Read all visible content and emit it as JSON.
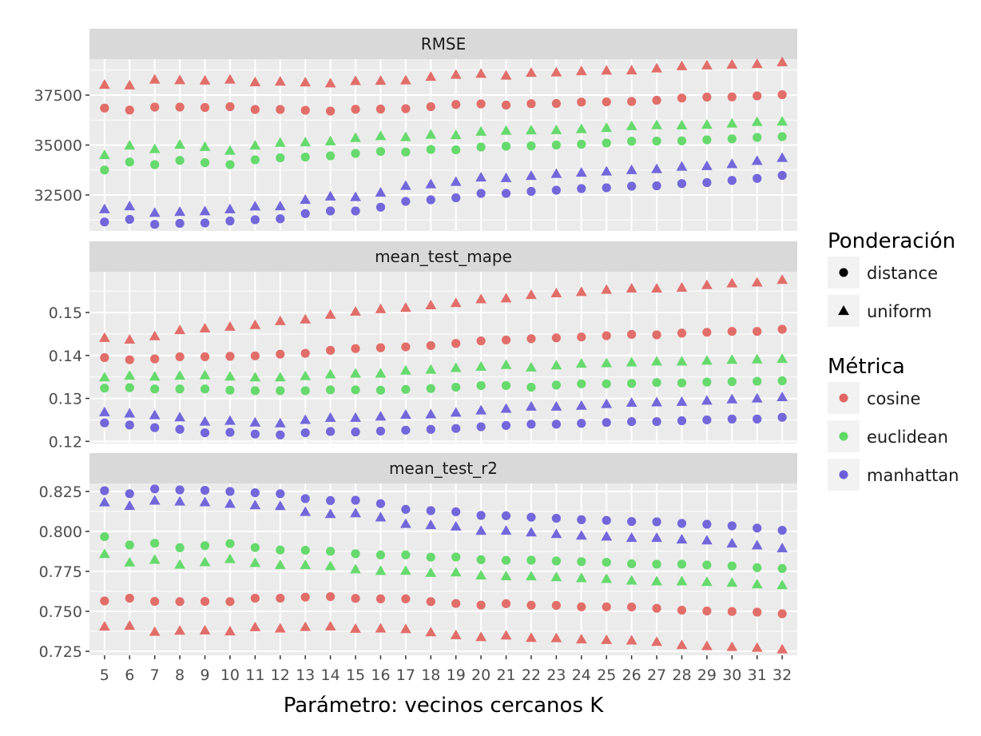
{
  "colors": {
    "cosine": "#e06662",
    "euclidean": "#5fd866",
    "manhattan": "#6b5fd9",
    "panel_bg": "#ebebeb",
    "strip_bg": "#d9d9d9",
    "grid": "#ffffff"
  },
  "chart_data": {
    "type": "scatter",
    "xlabel": "Parámetro: vecinos cercanos K",
    "x": [
      5,
      6,
      7,
      8,
      9,
      10,
      11,
      12,
      13,
      14,
      15,
      16,
      17,
      18,
      19,
      20,
      21,
      22,
      23,
      24,
      25,
      26,
      27,
      28,
      29,
      30,
      31,
      32
    ],
    "legend": {
      "placement": "right",
      "shape_title": "Ponderación",
      "shape_entries": [
        {
          "label": "distance",
          "shape": "circle"
        },
        {
          "label": "uniform",
          "shape": "triangle"
        }
      ],
      "color_title": "Métrica",
      "color_entries": [
        {
          "label": "cosine",
          "color": "#e06662"
        },
        {
          "label": "euclidean",
          "color": "#5fd866"
        },
        {
          "label": "manhattan",
          "color": "#6b5fd9"
        }
      ]
    },
    "panels": [
      {
        "strip": "RMSE",
        "ylim": [
          30700,
          39300
        ],
        "yticks": [
          32500,
          35000,
          37500
        ],
        "ytick_labels": [
          "32500",
          "35000",
          "37500"
        ],
        "minor_yticks": [
          31250,
          33750,
          36250,
          38750
        ],
        "series": [
          {
            "metric": "cosine",
            "weighting": "distance",
            "values": [
              36850,
              36750,
              36900,
              36900,
              36880,
              36920,
              36780,
              36780,
              36740,
              36700,
              36790,
              36800,
              36820,
              36920,
              37030,
              37060,
              37000,
              37070,
              37080,
              37150,
              37160,
              37180,
              37240,
              37350,
              37400,
              37410,
              37460,
              37520
            ]
          },
          {
            "metric": "cosine",
            "weighting": "uniform",
            "values": [
              38020,
              37990,
              38280,
              38250,
              38230,
              38280,
              38150,
              38180,
              38140,
              38090,
              38210,
              38220,
              38240,
              38420,
              38520,
              38570,
              38480,
              38620,
              38640,
              38700,
              38730,
              38740,
              38840,
              38950,
              38990,
              39030,
              39060,
              39150
            ]
          },
          {
            "metric": "euclidean",
            "weighting": "distance",
            "values": [
              33750,
              34150,
              34020,
              34230,
              34120,
              34020,
              34260,
              34360,
              34400,
              34460,
              34580,
              34680,
              34650,
              34780,
              34760,
              34900,
              34940,
              34960,
              35000,
              35040,
              35100,
              35190,
              35200,
              35210,
              35260,
              35310,
              35380,
              35420
            ]
          },
          {
            "metric": "euclidean",
            "weighting": "uniform",
            "values": [
              34500,
              34980,
              34800,
              35020,
              34910,
              34720,
              34980,
              35120,
              35140,
              35190,
              35360,
              35450,
              35400,
              35520,
              35500,
              35670,
              35720,
              35740,
              35750,
              35800,
              35860,
              35950,
              36000,
              35990,
              36020,
              36080,
              36160,
              36180
            ]
          },
          {
            "metric": "manhattan",
            "weighting": "distance",
            "values": [
              31150,
              31280,
              31030,
              31080,
              31100,
              31200,
              31260,
              31310,
              31570,
              31700,
              31700,
              31890,
              32180,
              32260,
              32360,
              32580,
              32580,
              32680,
              32740,
              32820,
              32860,
              32940,
              32960,
              33070,
              33120,
              33230,
              33330,
              33480
            ]
          },
          {
            "metric": "manhattan",
            "weighting": "uniform",
            "values": [
              31790,
              31940,
              31610,
              31660,
              31690,
              31790,
              31930,
              31940,
              32260,
              32430,
              32400,
              32620,
              32960,
              33040,
              33160,
              33380,
              33350,
              33460,
              33560,
              33620,
              33680,
              33750,
              33800,
              33920,
              33950,
              34050,
              34210,
              34360
            ]
          }
        ]
      },
      {
        "strip": "mean_test_mape",
        "ylim": [
          0.1195,
          0.1595
        ],
        "yticks": [
          0.12,
          0.13,
          0.14,
          0.15
        ],
        "ytick_labels": [
          "0.12",
          "0.13",
          "0.14",
          "0.15"
        ],
        "minor_yticks": [
          0.125,
          0.135,
          0.145,
          0.155
        ],
        "series": [
          {
            "metric": "cosine",
            "weighting": "distance",
            "values": [
              0.1395,
              0.139,
              0.1392,
              0.1397,
              0.1397,
              0.1398,
              0.1399,
              0.1403,
              0.1405,
              0.1412,
              0.1416,
              0.1418,
              0.142,
              0.1423,
              0.1428,
              0.1434,
              0.1436,
              0.1439,
              0.1441,
              0.1443,
              0.1446,
              0.1449,
              0.1448,
              0.1452,
              0.1454,
              0.1456,
              0.1456,
              0.1461
            ]
          },
          {
            "metric": "cosine",
            "weighting": "uniform",
            "values": [
              0.1441,
              0.1437,
              0.1445,
              0.1459,
              0.1463,
              0.1467,
              0.1471,
              0.148,
              0.1484,
              0.1495,
              0.1502,
              0.1508,
              0.1511,
              0.1517,
              0.1522,
              0.1531,
              0.1533,
              0.1541,
              0.1545,
              0.1548,
              0.1553,
              0.1556,
              0.1556,
              0.1558,
              0.1564,
              0.1568,
              0.157,
              0.1576
            ]
          },
          {
            "metric": "euclidean",
            "weighting": "distance",
            "values": [
              0.1324,
              0.1325,
              0.1322,
              0.1322,
              0.1322,
              0.1319,
              0.1318,
              0.1318,
              0.1318,
              0.132,
              0.132,
              0.1319,
              0.1321,
              0.1323,
              0.1326,
              0.133,
              0.133,
              0.1326,
              0.1331,
              0.1334,
              0.1334,
              0.1335,
              0.1337,
              0.1336,
              0.1338,
              0.1339,
              0.134,
              0.1341
            ]
          },
          {
            "metric": "euclidean",
            "weighting": "uniform",
            "values": [
              0.1349,
              0.1353,
              0.1351,
              0.1353,
              0.1354,
              0.1351,
              0.1349,
              0.1349,
              0.1352,
              0.1356,
              0.1358,
              0.1358,
              0.1365,
              0.1367,
              0.1371,
              0.1374,
              0.1378,
              0.1372,
              0.1377,
              0.1381,
              0.1382,
              0.1384,
              0.1386,
              0.1386,
              0.1388,
              0.139,
              0.1391,
              0.1392
            ]
          },
          {
            "metric": "manhattan",
            "weighting": "distance",
            "values": [
              0.1243,
              0.1238,
              0.1232,
              0.1228,
              0.122,
              0.1221,
              0.1217,
              0.1215,
              0.122,
              0.1223,
              0.1222,
              0.1224,
              0.1226,
              0.1228,
              0.123,
              0.1234,
              0.1237,
              0.124,
              0.124,
              0.1242,
              0.1244,
              0.1246,
              0.1246,
              0.1248,
              0.125,
              0.1252,
              0.1252,
              0.1256
            ]
          },
          {
            "metric": "manhattan",
            "weighting": "uniform",
            "values": [
              0.1268,
              0.1265,
              0.1261,
              0.1256,
              0.1246,
              0.1248,
              0.1244,
              0.1242,
              0.125,
              0.1255,
              0.1255,
              0.1258,
              0.1262,
              0.1263,
              0.1267,
              0.1272,
              0.1276,
              0.1281,
              0.1281,
              0.1283,
              0.1287,
              0.129,
              0.1291,
              0.1292,
              0.1295,
              0.1298,
              0.13,
              0.1303
            ]
          }
        ]
      },
      {
        "strip": "mean_test_r2",
        "ylim": [
          0.7225,
          0.83
        ],
        "yticks": [
          0.725,
          0.75,
          0.775,
          0.8,
          0.825
        ],
        "ytick_labels": [
          "0.725",
          "0.750",
          "0.775",
          "0.800",
          "0.825"
        ],
        "minor_yticks": [
          0.7375,
          0.7625,
          0.7875,
          0.8125
        ],
        "series": [
          {
            "metric": "cosine",
            "weighting": "distance",
            "values": [
              0.7565,
              0.7582,
              0.7562,
              0.7561,
              0.7562,
              0.7561,
              0.7582,
              0.7582,
              0.7589,
              0.7592,
              0.7581,
              0.7578,
              0.7578,
              0.7561,
              0.7549,
              0.7539,
              0.7548,
              0.7538,
              0.7537,
              0.7528,
              0.7528,
              0.7527,
              0.7519,
              0.7507,
              0.7502,
              0.7499,
              0.7495,
              0.7485
            ]
          },
          {
            "metric": "cosine",
            "weighting": "uniform",
            "values": [
              0.7405,
              0.741,
              0.7372,
              0.7379,
              0.7381,
              0.7375,
              0.7401,
              0.7393,
              0.7402,
              0.7406,
              0.7391,
              0.7393,
              0.7389,
              0.7369,
              0.7351,
              0.7339,
              0.7349,
              0.7334,
              0.7332,
              0.7325,
              0.7321,
              0.7318,
              0.7309,
              0.7289,
              0.7283,
              0.7277,
              0.7272,
              0.7262
            ]
          },
          {
            "metric": "euclidean",
            "weighting": "distance",
            "values": [
              0.7967,
              0.7915,
              0.7926,
              0.7898,
              0.7911,
              0.7924,
              0.7899,
              0.7884,
              0.7882,
              0.7876,
              0.7861,
              0.7853,
              0.7853,
              0.7839,
              0.784,
              0.7823,
              0.7819,
              0.782,
              0.7815,
              0.7811,
              0.7807,
              0.7797,
              0.7795,
              0.7795,
              0.779,
              0.7784,
              0.7773,
              0.7768
            ]
          },
          {
            "metric": "euclidean",
            "weighting": "uniform",
            "values": [
              0.7859,
              0.7806,
              0.7823,
              0.7792,
              0.7808,
              0.7827,
              0.7803,
              0.779,
              0.779,
              0.7783,
              0.7763,
              0.7753,
              0.7754,
              0.7741,
              0.7744,
              0.7725,
              0.772,
              0.7719,
              0.7714,
              0.7708,
              0.7703,
              0.7693,
              0.7688,
              0.7688,
              0.7684,
              0.7679,
              0.7669,
              0.7664
            ]
          },
          {
            "metric": "manhattan",
            "weighting": "distance",
            "values": [
              0.8255,
              0.8236,
              0.8266,
              0.826,
              0.8257,
              0.825,
              0.8242,
              0.8236,
              0.8205,
              0.8193,
              0.8195,
              0.8174,
              0.8138,
              0.813,
              0.8123,
              0.81,
              0.8098,
              0.8089,
              0.8082,
              0.8073,
              0.8069,
              0.8062,
              0.806,
              0.805,
              0.8045,
              0.8035,
              0.8021,
              0.8007
            ]
          },
          {
            "metric": "manhattan",
            "weighting": "uniform",
            "values": [
              0.8182,
              0.816,
              0.8193,
              0.8187,
              0.8183,
              0.8173,
              0.8164,
              0.8159,
              0.8122,
              0.8109,
              0.8114,
              0.8088,
              0.8047,
              0.804,
              0.8031,
              0.8004,
              0.8005,
              0.7994,
              0.7984,
              0.7974,
              0.7968,
              0.796,
              0.796,
              0.795,
              0.7944,
              0.7925,
              0.7913,
              0.7895
            ]
          }
        ]
      }
    ]
  }
}
